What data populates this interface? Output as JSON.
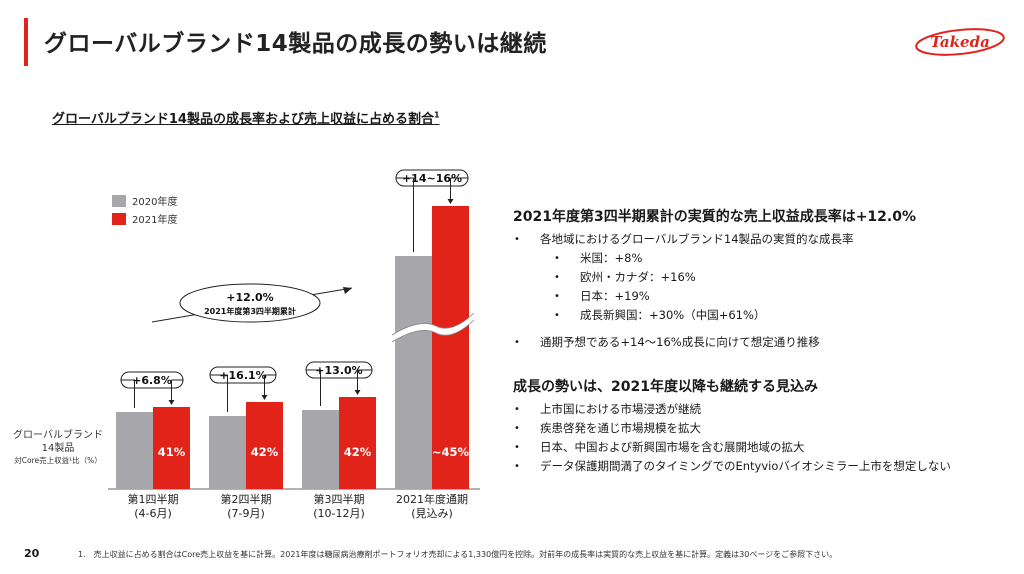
{
  "header": {
    "title": "グローバルブランド14製品の成長の勢いは継続",
    "logo_text": "Takeda",
    "accent_color": "#e2231a"
  },
  "subtitle": {
    "text": "グローバルブランド14製品の成長率および売上収益に占める割合",
    "sup": "1"
  },
  "chart_data": {
    "type": "bar",
    "categories": [
      [
        "第1四半期",
        "(4-6月)"
      ],
      [
        "第2四半期",
        "(7-9月)"
      ],
      [
        "第3四半期",
        "(10-12月)"
      ],
      [
        "2021年度通期",
        "(見込み)"
      ]
    ],
    "series": [
      {
        "name": "2020年度",
        "color": "#a6a6ab"
      },
      {
        "name": "2021年度",
        "color": "#e2231a",
        "labels": [
          "41%",
          "42%",
          "42%",
          "~45%"
        ]
      }
    ],
    "growth_labels": [
      "+6.8%",
      "+16.1%",
      "+13.0%",
      "+14~16%"
    ],
    "cumulative_label": [
      "+12.0%",
      "2021年度第3四半期累計"
    ],
    "row_label": [
      "グローバルブランド",
      "14製品",
      "対Core売上収益¹比（%）"
    ]
  },
  "right": {
    "heading1": "2021年度第3四半期累計の実質的な売上収益成長率は+12.0%",
    "bullet1": "各地域におけるグローバルブランド14製品の実質的な成長率",
    "sub": [
      "米国：+8%",
      "欧州・カナダ：+16%",
      "日本：+19%",
      "成長新興国：+30%（中国+61%）"
    ],
    "bullet2": "通期予想である+14～16%成長に向けて想定通り推移",
    "heading2": "成長の勢いは、2021年度以降も継続する見込み",
    "bullets2": [
      "上市国における市場浸透が継続",
      "疾患啓発を通じ市場規模を拡大",
      "日本、中国および新興国市場を含む展開地域の拡大",
      "データ保護期間満了のタイミングでのEntyvioバイオシミラー上市を想定しない"
    ]
  },
  "footer": {
    "page": "20",
    "footnote": "1.　売上収益に占める割合はCore売上収益を基に計算。2021年度は糖尿病治療剤ポートフォリオ売却による1,330億円を控除。対前年の成長率は実質的な売上収益を基に計算。定義は30ページをご参照下さい。"
  }
}
